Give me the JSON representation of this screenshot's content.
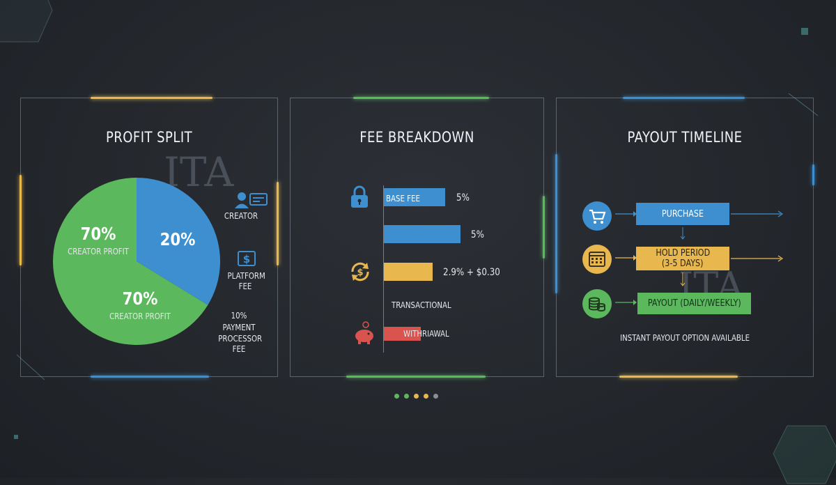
{
  "profit_split": {
    "title": "PROFIT SPLIT",
    "slice_left_value": "70%",
    "slice_left_label": "CREATOR PROFIT",
    "slice_right_value": "20%",
    "slice_bottom_value": "70%",
    "slice_bottom_label": "CREATOR PROFIT",
    "legend": {
      "creator": "CREATOR",
      "platform_line1": "PLATFORM",
      "platform_line2": "FEE",
      "payment_line1": "10%",
      "payment_line2": "PAYMENT",
      "payment_line3": "PROCESSOR",
      "payment_line4": "FEE"
    },
    "colors": {
      "green": "#5cb85c",
      "blue": "#3d8fcf"
    }
  },
  "fee_breakdown": {
    "title": "FEE BREAKDOWN",
    "rows": [
      {
        "label": "BASE FEE",
        "value": "5%",
        "color": "#3d8fcf",
        "icon": "lock-icon"
      },
      {
        "label": "",
        "value": "5%",
        "color": "#3d8fcf",
        "icon": ""
      },
      {
        "label": "",
        "value": "2.9% + $0.30",
        "color": "#e8b84f",
        "icon": "dollar-cycle-icon"
      },
      {
        "label": "TRANSACTIONAL",
        "value": "",
        "color": "",
        "icon": ""
      },
      {
        "label": "WITHRIAWAL",
        "value": "",
        "color": "#d9534f",
        "icon": "piggy-bank-icon"
      }
    ]
  },
  "payout_timeline": {
    "title": "PAYOUT TIMELINE",
    "steps": [
      {
        "label": "PURCHASE",
        "color": "#3d8fcf",
        "icon": "cart-icon"
      },
      {
        "label_line1": "HOLD PERIOD",
        "label_line2": "(3-5 DAYS)",
        "color": "#e8b84f",
        "icon": "calendar-icon"
      },
      {
        "label": "PAYOUT (DAILY/WEEKLY)",
        "color": "#5cb85c",
        "icon": "coins-icon"
      }
    ],
    "note": "INSTANT PAYOUT OPTION AVAILABLE"
  },
  "pagination": {
    "dot_colors": [
      "#5cb85c",
      "#5cb85c",
      "#e8b84f",
      "#e8b84f",
      "#8a8f95"
    ]
  }
}
